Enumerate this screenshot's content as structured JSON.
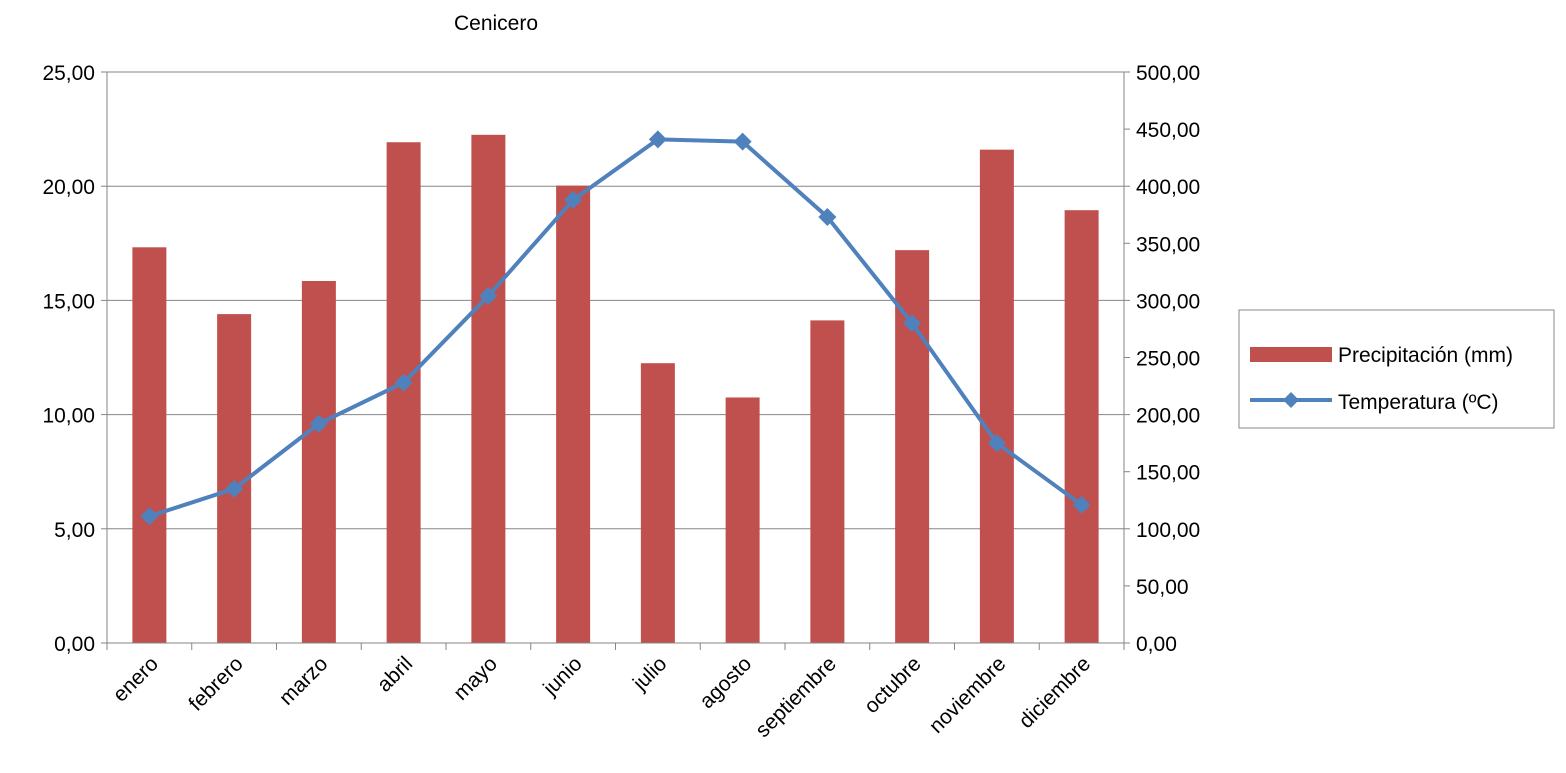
{
  "chart_data": {
    "type": "bar",
    "title": "Cenicero",
    "categories": [
      "enero",
      "febrero",
      "marzo",
      "abril",
      "mayo",
      "junio",
      "julio",
      "agosto",
      "septiembre",
      "octubre",
      "noviembre",
      "diciembre"
    ],
    "series": [
      {
        "name": "Precipitación (mm)",
        "type": "bar",
        "axis": "right",
        "color": "#C0504D",
        "values": [
          346.5,
          288.0,
          317.0,
          438.5,
          445.0,
          400.5,
          245.0,
          215.0,
          282.5,
          344.0,
          432.0,
          379.0
        ]
      },
      {
        "name": "Temperatura (ºC)",
        "type": "line",
        "axis": "left",
        "color": "#4F81BD",
        "marker": "diamond",
        "values": [
          5.55,
          6.75,
          9.6,
          11.4,
          15.2,
          19.4,
          22.05,
          21.95,
          18.65,
          14.0,
          8.75,
          6.05
        ]
      }
    ],
    "y_left": {
      "ylim": [
        0,
        25
      ],
      "ticks": [
        0,
        5,
        10,
        15,
        20,
        25
      ],
      "tick_labels": [
        "0,00",
        "5,00",
        "10,00",
        "15,00",
        "20,00",
        "25,00"
      ]
    },
    "y_right": {
      "ylim": [
        0,
        500
      ],
      "ticks": [
        0,
        50,
        100,
        150,
        200,
        250,
        300,
        350,
        400,
        450,
        500
      ],
      "tick_labels": [
        "0,00",
        "50,00",
        "100,00",
        "150,00",
        "200,00",
        "250,00",
        "300,00",
        "350,00",
        "400,00",
        "450,00",
        "500,00"
      ]
    },
    "grid": true,
    "legend_position": "right"
  }
}
